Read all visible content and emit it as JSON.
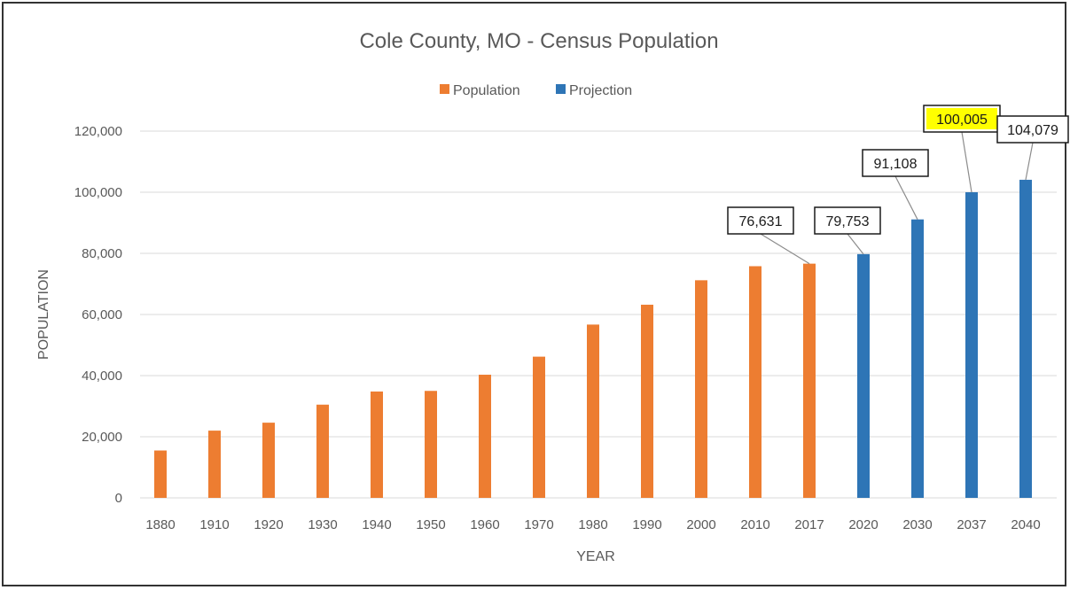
{
  "chart_data": {
    "type": "bar",
    "title": "Cole County, MO - Census Population",
    "xlabel": "YEAR",
    "ylabel": "POPULATION",
    "ylim": [
      0,
      120000
    ],
    "yticks": [
      "0",
      "20,000",
      "40,000",
      "60,000",
      "80,000",
      "100,000",
      "120,000"
    ],
    "ytick_values": [
      0,
      20000,
      40000,
      60000,
      80000,
      100000,
      120000
    ],
    "grid": true,
    "legend_position": "top-center",
    "categories": [
      "1880",
      "1910",
      "1920",
      "1930",
      "1940",
      "1950",
      "1960",
      "1970",
      "1980",
      "1990",
      "2000",
      "2010",
      "2017",
      "2020",
      "2030",
      "2037",
      "2040"
    ],
    "series": [
      {
        "name": "Population",
        "color": "#ed7d31",
        "values": [
          15500,
          22000,
          24600,
          30500,
          34800,
          35000,
          40300,
          46200,
          56700,
          63200,
          71200,
          75800,
          76631,
          null,
          null,
          null,
          null
        ]
      },
      {
        "name": "Projection",
        "color": "#2e75b6",
        "values": [
          null,
          null,
          null,
          null,
          null,
          null,
          null,
          null,
          null,
          null,
          null,
          null,
          null,
          79753,
          91108,
          100005,
          104079
        ]
      }
    ],
    "annotations": [
      {
        "category": "2017",
        "text": "76,631",
        "highlight": false
      },
      {
        "category": "2020",
        "text": "79,753",
        "highlight": false
      },
      {
        "category": "2030",
        "text": "91,108",
        "highlight": false
      },
      {
        "category": "2037",
        "text": "100,005",
        "highlight": true,
        "highlight_color": "#ffff00"
      },
      {
        "category": "2040",
        "text": "104,079",
        "highlight": false
      }
    ]
  }
}
